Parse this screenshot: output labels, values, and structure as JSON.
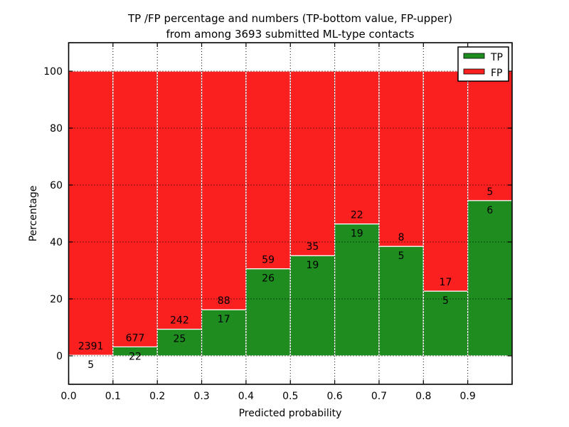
{
  "chart_data": {
    "type": "bar",
    "stacked": true,
    "title_line1": "TP /FP percentage and numbers (TP-bottom value, FP-upper)",
    "title_line2": "from among 3693 submitted ML-type contacts",
    "xlabel": "Predicted probability",
    "ylabel": "Percentage",
    "total_contacts": 3693,
    "xlim": [
      0.0,
      1.0
    ],
    "ylim": [
      -10,
      110
    ],
    "bar_width": 0.1,
    "bin_edges": [
      0.0,
      0.1,
      0.2,
      0.3,
      0.4,
      0.5,
      0.6,
      0.7,
      0.8,
      0.9,
      1.0
    ],
    "x_ticks": [
      {
        "value": 0.0,
        "label": "0.0"
      },
      {
        "value": 0.1,
        "label": "0.1"
      },
      {
        "value": 0.2,
        "label": "0.2"
      },
      {
        "value": 0.3,
        "label": "0.3"
      },
      {
        "value": 0.4,
        "label": "0.4"
      },
      {
        "value": 0.5,
        "label": "0.5"
      },
      {
        "value": 0.6,
        "label": "0.6"
      },
      {
        "value": 0.7,
        "label": "0.7"
      },
      {
        "value": 0.8,
        "label": "0.8"
      },
      {
        "value": 0.9,
        "label": "0.9"
      },
      {
        "value": 1.0,
        "label": ""
      }
    ],
    "y_ticks": [
      0,
      20,
      40,
      60,
      80,
      100
    ],
    "grid": true,
    "grid_style": "dotted",
    "series": [
      {
        "name": "TP",
        "color": "#1e8c1e",
        "counts": [
          5,
          22,
          25,
          17,
          26,
          19,
          19,
          5,
          5,
          6
        ],
        "pct": [
          0.21,
          3.15,
          9.36,
          16.19,
          30.59,
          35.19,
          46.34,
          38.46,
          22.73,
          54.55
        ]
      },
      {
        "name": "FP",
        "color": "#fa2020",
        "counts": [
          2391,
          677,
          242,
          88,
          59,
          35,
          22,
          8,
          17,
          5
        ],
        "pct": [
          99.79,
          96.85,
          90.64,
          83.81,
          69.41,
          64.81,
          53.66,
          61.54,
          77.27,
          45.45
        ]
      }
    ],
    "legend": {
      "position": "upper right",
      "entries": [
        {
          "label": "TP",
          "color": "#1e8c1e"
        },
        {
          "label": "FP",
          "color": "#fa2020"
        }
      ]
    }
  }
}
